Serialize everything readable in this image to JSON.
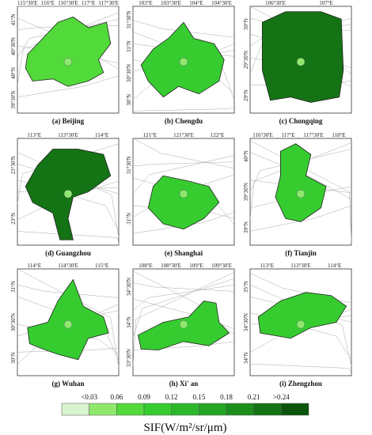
{
  "panels": [
    {
      "caption": "(a) Beijing",
      "top_labels": [
        "115°30'E",
        "116°E",
        "116°30'E",
        "117°E",
        "117°30'E"
      ],
      "left_labels": [
        "41°N",
        "40°30'N",
        "40°N",
        "39°30'N"
      ]
    },
    {
      "caption": "(b) Chengdu",
      "top_labels": [
        "103°E",
        "103°30'E",
        "104°E",
        "104°30'E"
      ],
      "left_labels": [
        "31°30'N",
        "31°N",
        "30°30'N",
        "30°N"
      ]
    },
    {
      "caption": "(c) Chongqing",
      "top_labels": [
        "106°30'E",
        "107°E"
      ],
      "left_labels": [
        "30°N",
        "29°30'N",
        "29°N"
      ]
    },
    {
      "caption": "(d) Guangzhou",
      "top_labels": [
        "113°E",
        "113°30'E",
        "114°E"
      ],
      "left_labels": [
        "23°30'N",
        "23°N"
      ]
    },
    {
      "caption": "(e) Shanghai",
      "top_labels": [
        "121°E",
        "121°30'E",
        "122°E"
      ],
      "left_labels": [
        "31°30'N",
        "31°N"
      ]
    },
    {
      "caption": "(f) Tianjin",
      "top_labels": [
        "116°30'E",
        "117°E",
        "117°30'E",
        "118°E"
      ],
      "left_labels": [
        "40°N",
        "39°30'N",
        "39°N"
      ]
    },
    {
      "caption": "(g) Wuhan",
      "top_labels": [
        "114°E",
        "114°30'E",
        "115°E"
      ],
      "left_labels": [
        "31°N",
        "30°30'N",
        "30°N"
      ]
    },
    {
      "caption": "(h) Xi' an",
      "top_labels": [
        "108°E",
        "108°30'E",
        "109°E",
        "109°30'E"
      ],
      "left_labels": [
        "34°30'N",
        "34°N",
        "33°30'N"
      ]
    },
    {
      "caption": "(i) Zhengzhou",
      "top_labels": [
        "113°E",
        "113°30'E",
        "114°E"
      ],
      "left_labels": [
        "35°N",
        "34°30'N",
        "34°N"
      ]
    }
  ],
  "legend": {
    "labels": [
      "<0.03",
      "0.06",
      "0.09",
      "0.12",
      "0.15",
      "0.18",
      "0.21",
      ">0.24"
    ],
    "colors": [
      "#d8f5cf",
      "#8fe86c",
      "#52da3b",
      "#36cc30",
      "#2cb82a",
      "#23a622",
      "#1b8e1b",
      "#147314",
      "#0b540b"
    ],
    "title": "SIF(W/m²/sr/μm)"
  }
}
